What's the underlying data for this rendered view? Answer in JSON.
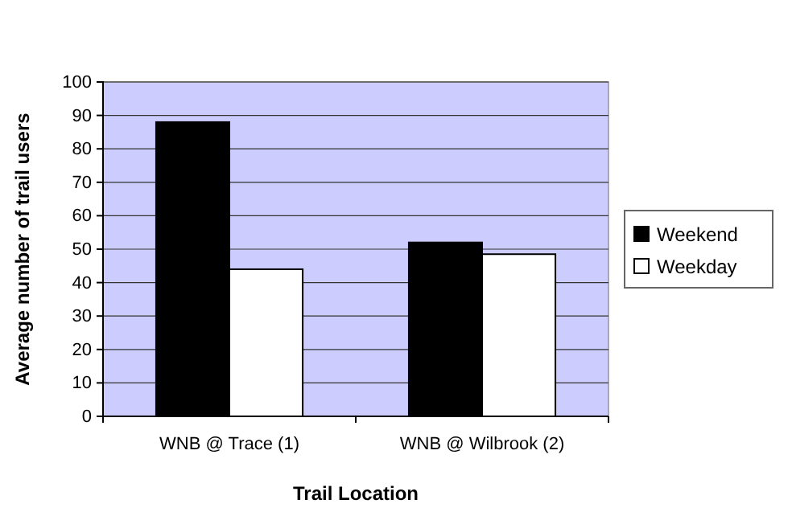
{
  "chart_data": {
    "type": "bar",
    "xlabel": "Trail Location",
    "ylabel": "Average number of trail users",
    "categories": [
      "WNB @ Trace (1)",
      "WNB @ Wilbrook (2)"
    ],
    "series": [
      {
        "name": "Weekend",
        "color": "#000000",
        "values": [
          88,
          52
        ]
      },
      {
        "name": "Weekday",
        "color": "#ffffff",
        "values": [
          44,
          48.5
        ]
      }
    ],
    "ylim": [
      0,
      100
    ],
    "yticks": [
      0,
      10,
      20,
      30,
      40,
      50,
      60,
      70,
      80,
      90,
      100
    ],
    "grid": "y",
    "legend": "right"
  }
}
